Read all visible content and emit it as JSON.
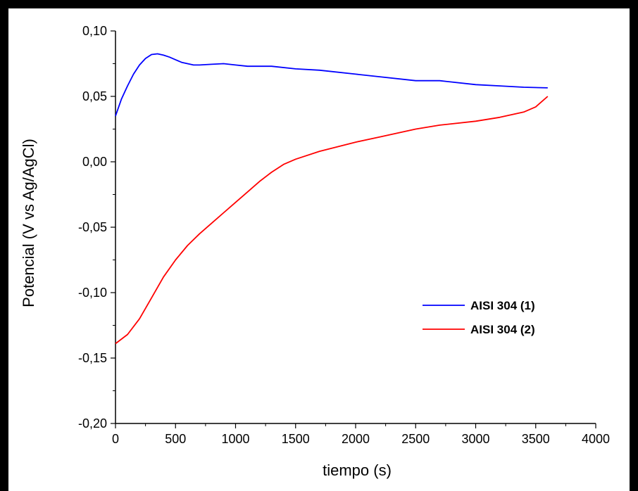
{
  "chart_data": {
    "type": "line",
    "title": "",
    "xlabel": "tiempo (s)",
    "ylabel": "Potencial (V vs Ag/AgCl)",
    "xlim": [
      0,
      4000
    ],
    "ylim": [
      -0.2,
      0.1
    ],
    "x_ticks": [
      0,
      500,
      1000,
      1500,
      2000,
      2500,
      3000,
      3500,
      4000
    ],
    "x_tick_labels": [
      "0",
      "500",
      "1000",
      "1500",
      "2000",
      "2500",
      "3000",
      "3500",
      "4000"
    ],
    "y_ticks": [
      -0.2,
      -0.15,
      -0.1,
      -0.05,
      0.0,
      0.05,
      0.1
    ],
    "y_tick_labels": [
      "-0,20",
      "-0,15",
      "-0,10",
      "-0,05",
      "0,00",
      "0,05",
      "0,10"
    ],
    "grid": false,
    "legend_position": "lower-right",
    "series": [
      {
        "name": "AISI 304 (1)",
        "color": "#0000ff",
        "x": [
          0,
          50,
          100,
          150,
          200,
          250,
          300,
          350,
          400,
          450,
          500,
          550,
          600,
          650,
          700,
          800,
          900,
          1000,
          1100,
          1200,
          1300,
          1500,
          1700,
          2000,
          2200,
          2500,
          2700,
          3000,
          3200,
          3400,
          3600
        ],
        "y": [
          0.035,
          0.048,
          0.058,
          0.067,
          0.074,
          0.079,
          0.082,
          0.0825,
          0.0815,
          0.08,
          0.078,
          0.076,
          0.075,
          0.074,
          0.074,
          0.0745,
          0.075,
          0.074,
          0.073,
          0.073,
          0.073,
          0.071,
          0.07,
          0.067,
          0.065,
          0.062,
          0.062,
          0.059,
          0.058,
          0.057,
          0.0565
        ]
      },
      {
        "name": "AISI 304 (2)",
        "color": "#ff0000",
        "x": [
          0,
          100,
          200,
          300,
          400,
          500,
          600,
          700,
          800,
          900,
          1000,
          1100,
          1200,
          1300,
          1400,
          1500,
          1700,
          2000,
          2200,
          2500,
          2700,
          3000,
          3200,
          3400,
          3500,
          3550,
          3600
        ],
        "y": [
          -0.139,
          -0.132,
          -0.12,
          -0.104,
          -0.088,
          -0.075,
          -0.064,
          -0.055,
          -0.047,
          -0.039,
          -0.031,
          -0.023,
          -0.015,
          -0.008,
          -0.002,
          0.002,
          0.008,
          0.015,
          0.019,
          0.025,
          0.028,
          0.031,
          0.034,
          0.038,
          0.042,
          0.046,
          0.05
        ]
      }
    ]
  }
}
